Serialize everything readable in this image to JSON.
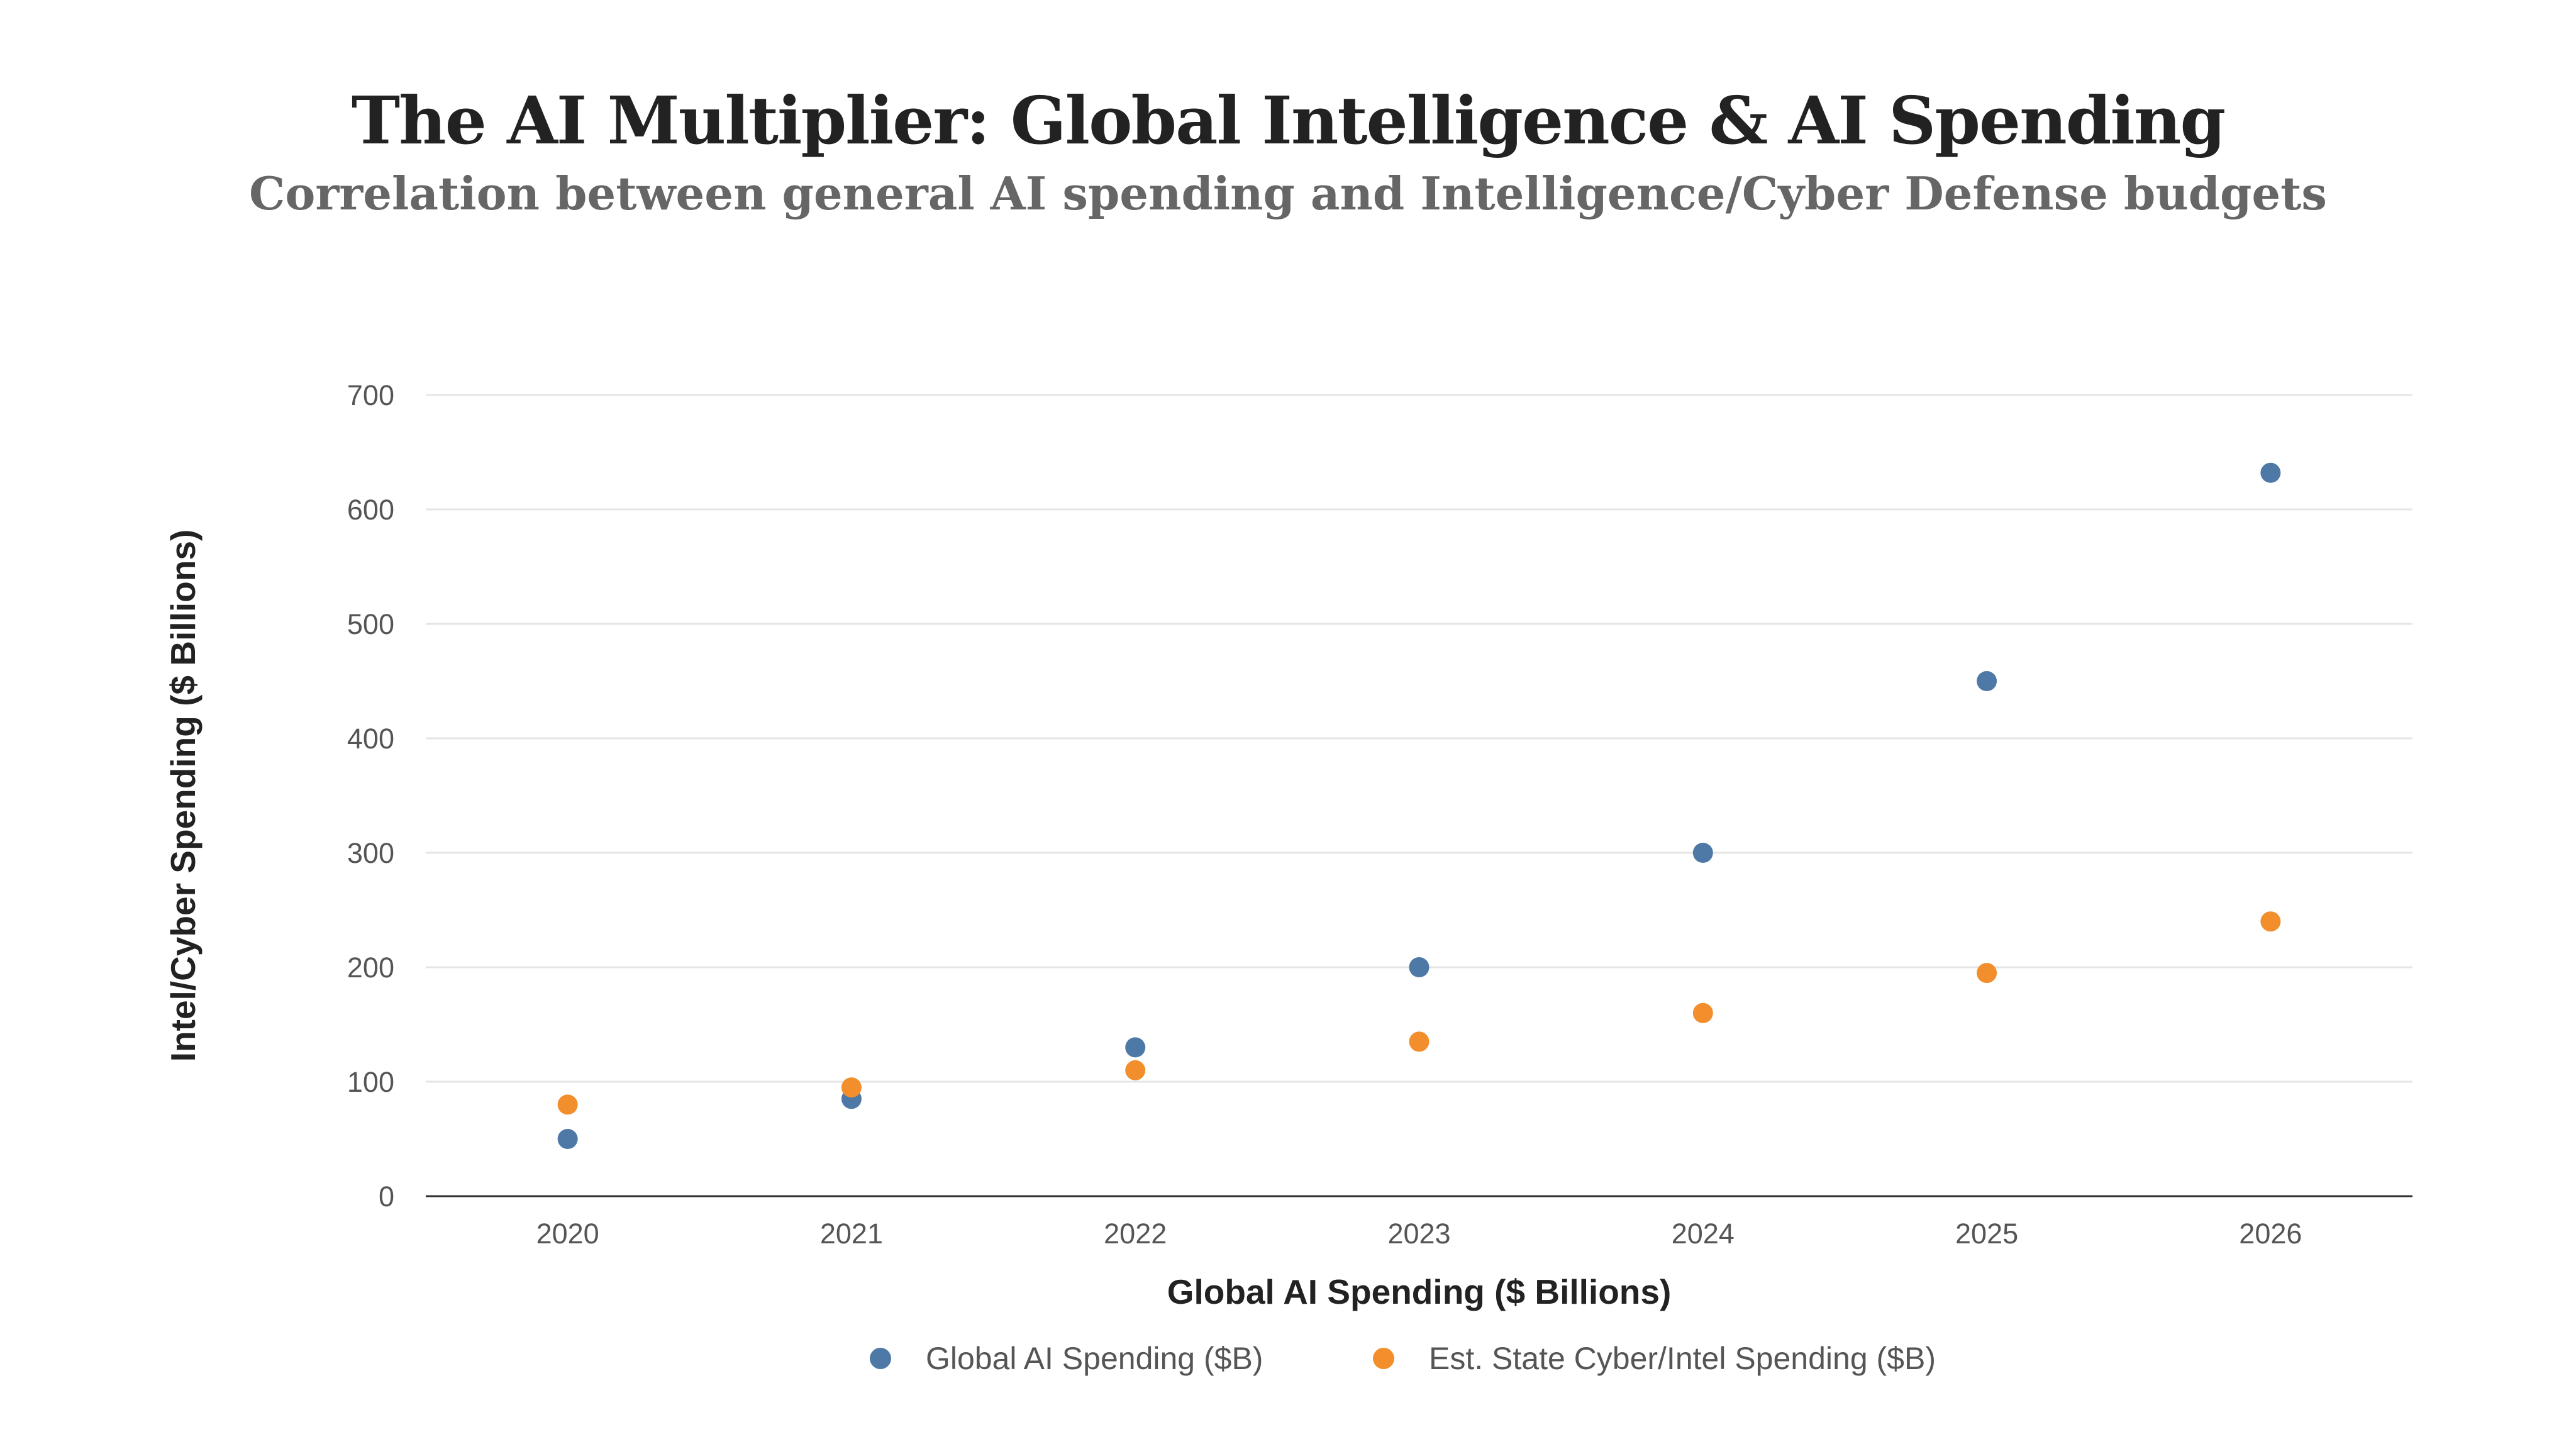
{
  "header": {
    "title": "The AI Multiplier: Global Intelligence & AI Spending",
    "subtitle": "Correlation between general AI spending and Intelligence/Cyber Defense budgets"
  },
  "chart_data": {
    "type": "scatter",
    "title": "The AI Multiplier: Global Intelligence & AI Spending",
    "subtitle": "Correlation between general AI spending and Intelligence/Cyber Defense budgets",
    "xlabel": "Global AI Spending ($ Billions)",
    "ylabel": "Intel/Cyber Spending ($ Billions)",
    "categories": [
      "2020",
      "2021",
      "2022",
      "2023",
      "2024",
      "2025",
      "2026"
    ],
    "ylim": [
      0,
      700
    ],
    "yticks": [
      0,
      100,
      200,
      300,
      400,
      500,
      600,
      700
    ],
    "grid": true,
    "legend_position": "bottom-center",
    "series": [
      {
        "name": "Global AI Spending ($B)",
        "color": "#4e79a7",
        "values": [
          50,
          85,
          130,
          200,
          300,
          450,
          632
        ]
      },
      {
        "name": "Est. State Cyber/Intel Spending ($B)",
        "color": "#f28e2b",
        "values": [
          80,
          95,
          110,
          135,
          160,
          195,
          240
        ]
      }
    ]
  }
}
